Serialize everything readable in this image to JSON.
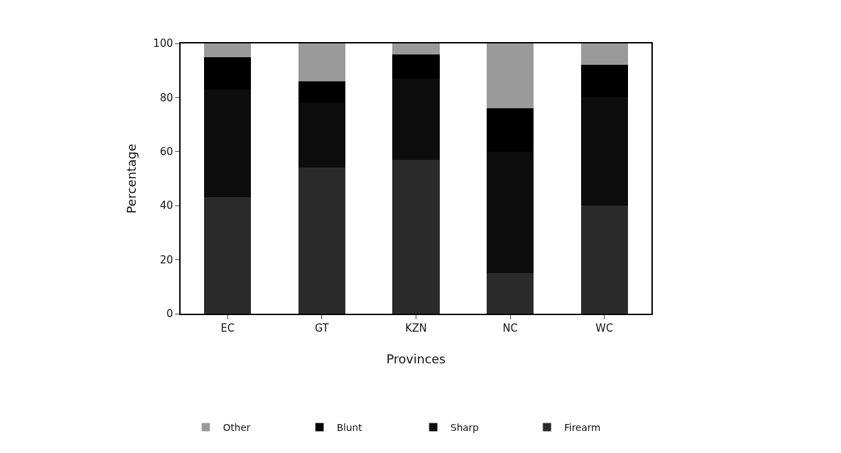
{
  "chart_data": {
    "type": "bar",
    "stacked": true,
    "xlabel": "Provinces",
    "ylabel": "Percentage",
    "categories": [
      "EC",
      "GT",
      "KZN",
      "NC",
      "WC"
    ],
    "series": [
      {
        "name": "Firearm",
        "color": "#2b2b2b",
        "values": [
          43,
          54,
          57,
          15,
          40
        ]
      },
      {
        "name": "Sharp",
        "color": "#0d0d0d",
        "values": [
          40,
          24,
          30,
          45,
          40
        ]
      },
      {
        "name": "Blunt",
        "color": "#000000",
        "values": [
          12,
          8,
          9,
          16,
          12
        ]
      },
      {
        "name": "Other",
        "color": "#9a9a9a",
        "values": [
          5,
          14,
          4,
          24,
          8
        ]
      }
    ],
    "ylim": [
      0,
      100
    ],
    "yticks": [
      0,
      20,
      40,
      60,
      80,
      100
    ],
    "grid": false,
    "legend": "bottom"
  }
}
